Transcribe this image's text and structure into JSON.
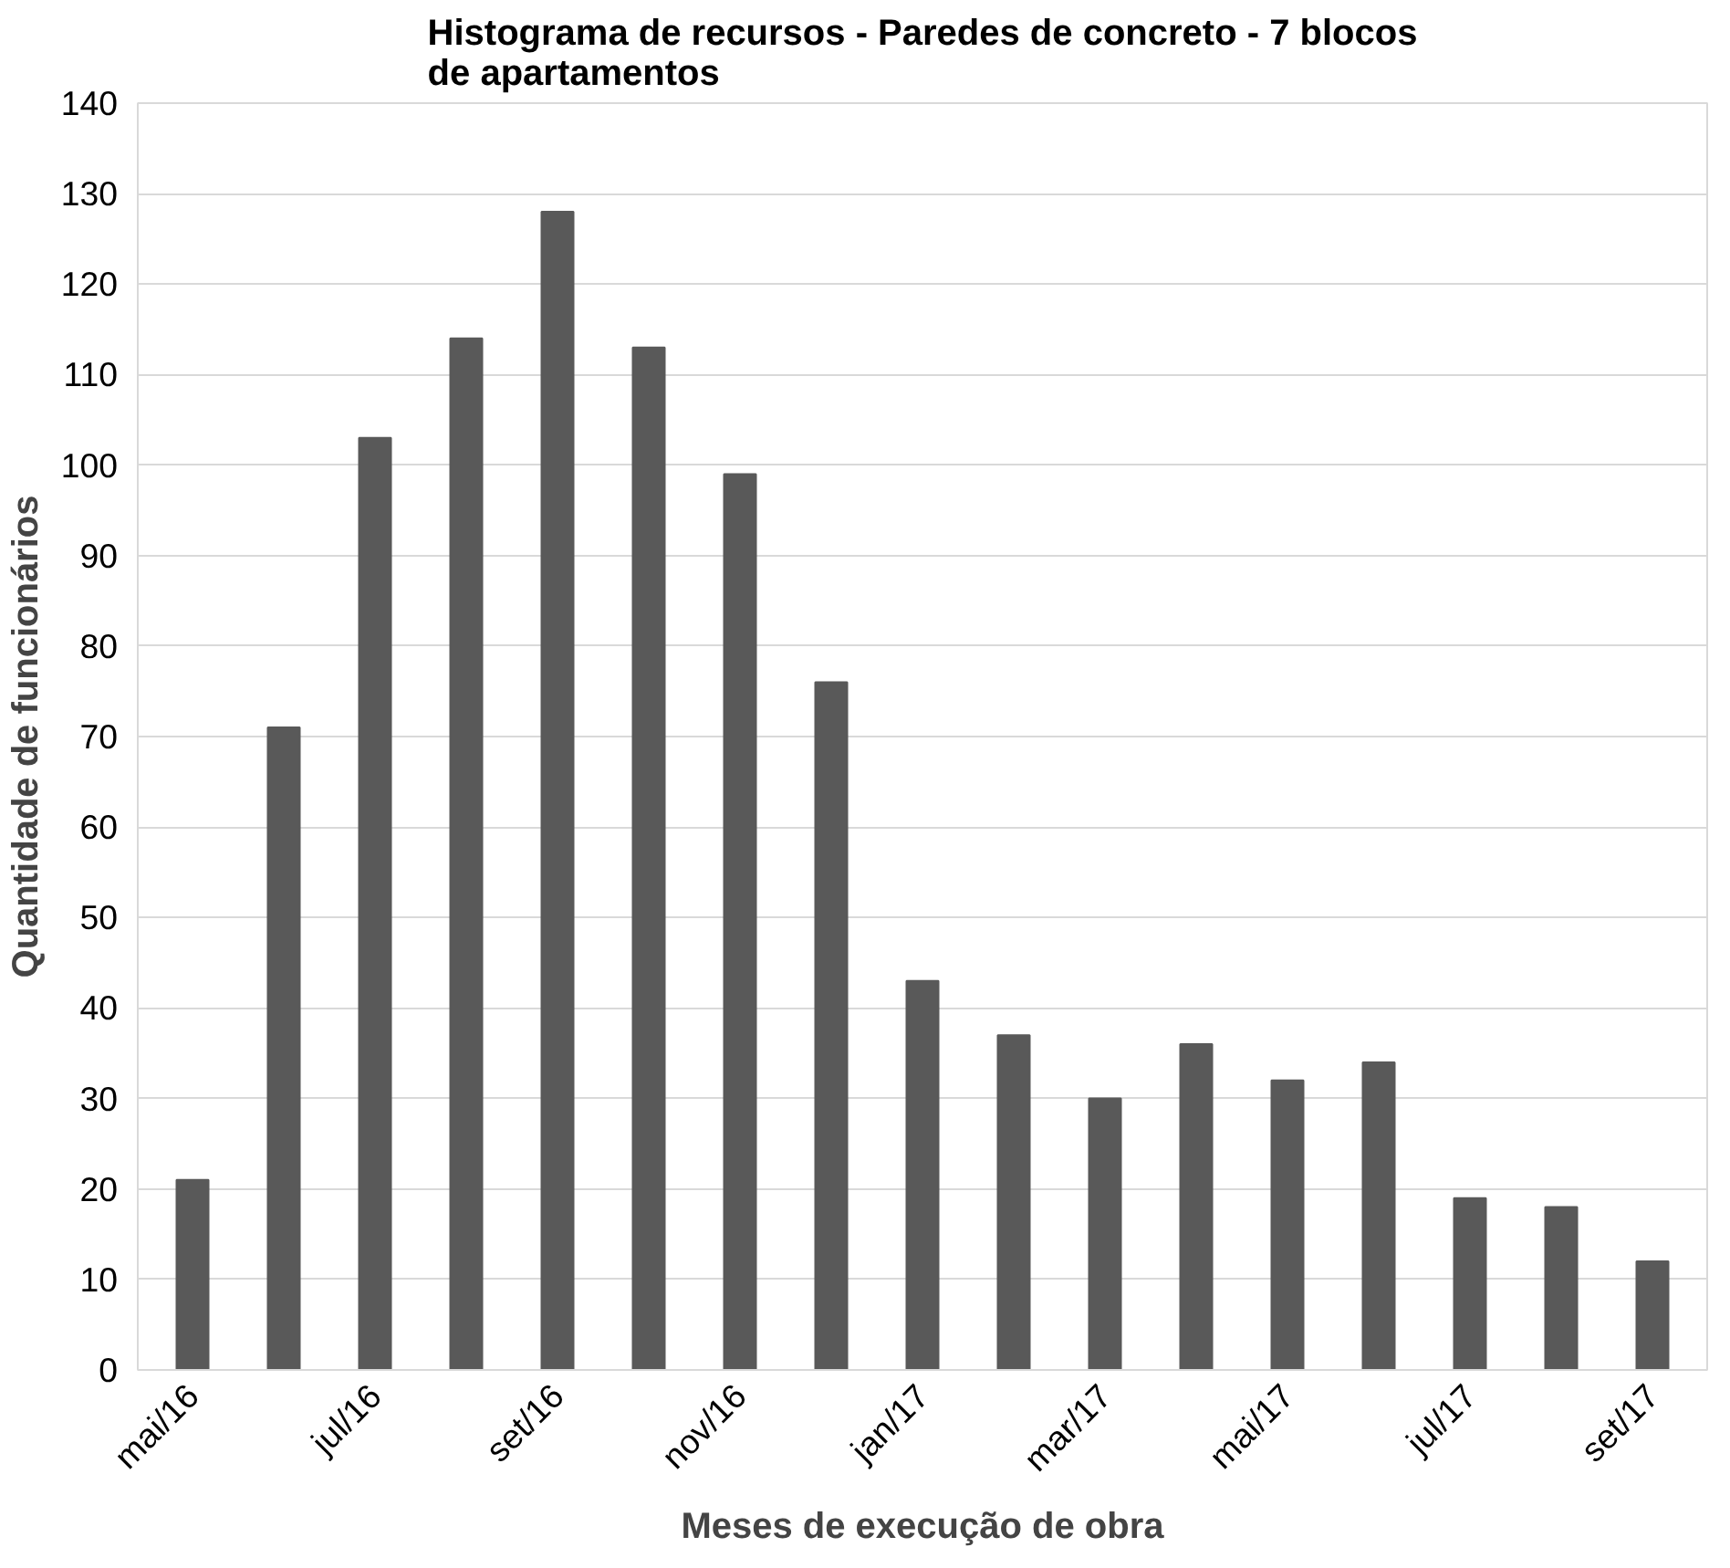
{
  "chart_data": {
    "type": "bar",
    "title": "Histograma de recursos - Paredes de concreto - 7 blocos de apartamentos",
    "xlabel": "Meses de execução de obra",
    "ylabel": "Quantidade de funcionários",
    "categories": [
      "mai/16",
      null,
      "jul/16",
      null,
      "set/16",
      null,
      "nov/16",
      null,
      "jan/17",
      null,
      "mar/17",
      null,
      "mai/17",
      null,
      "jul/17",
      null,
      "set/17"
    ],
    "values": [
      21,
      71,
      103,
      114,
      128,
      113,
      99,
      76,
      43,
      37,
      30,
      36,
      32,
      34,
      19,
      18,
      12
    ],
    "color": "#595959",
    "ylim": [
      0,
      140
    ],
    "yticks": [
      0,
      10,
      20,
      30,
      40,
      50,
      60,
      70,
      80,
      90,
      100,
      110,
      120,
      130,
      140
    ],
    "grid": "y"
  }
}
